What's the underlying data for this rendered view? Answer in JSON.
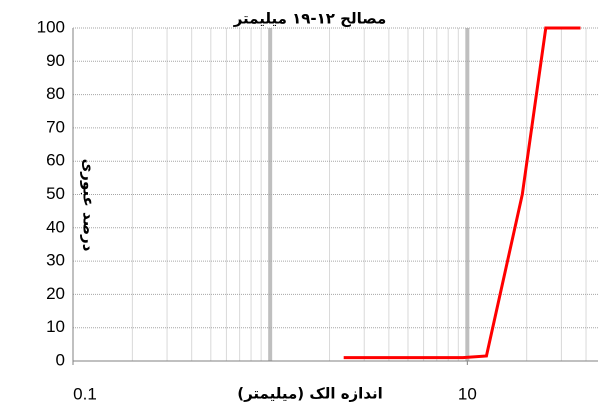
{
  "chart_data": {
    "type": "line",
    "title": "مصالح ۱۲-۱۹ میلیمتر",
    "x_label": "اندازه الک (میلیمتر)",
    "y_label": "درصد عبوری",
    "x": [
      2.36,
      9.5,
      12.5,
      19,
      25,
      37.5
    ],
    "series": [
      {
        "name": "مصالح",
        "color": "#ff0000",
        "values": [
          1,
          1,
          1.5,
          50,
          100,
          100
        ]
      }
    ],
    "xlim": [
      0.1,
      46
    ],
    "xticks": [
      0.1,
      10
    ],
    "log_x": true,
    "ylim": [
      0,
      100
    ],
    "yticks": [
      0,
      10,
      20,
      30,
      40,
      50,
      60,
      70,
      80,
      90,
      100
    ],
    "grid": true
  }
}
